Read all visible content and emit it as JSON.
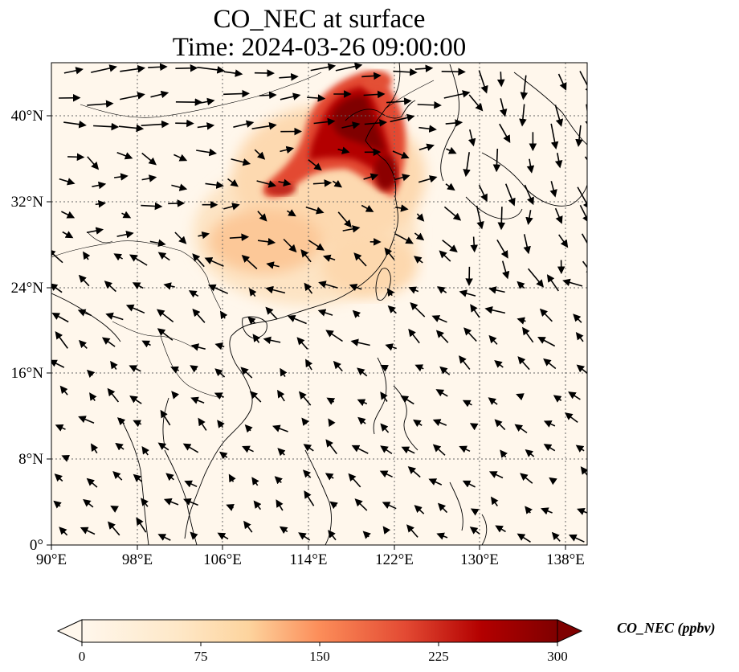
{
  "title": {
    "line1": "CO_NEC at surface",
    "line2": "Time: 2024-03-26 09:00:00"
  },
  "map": {
    "variable": "CO_NEC",
    "level": "surface",
    "time": "2024-03-26 09:00:00",
    "lon_range": [
      90,
      140
    ],
    "lat_range": [
      0,
      45
    ],
    "lon_ticks": [
      "90°E",
      "98°E",
      "106°E",
      "114°E",
      "122°E",
      "130°E",
      "138°E"
    ],
    "lat_ticks": [
      "0°",
      "8°N",
      "16°N",
      "24°N",
      "32°N",
      "40°N"
    ],
    "gridlines": "dotted",
    "overlays": [
      "coastlines",
      "country borders",
      "wind vectors"
    ],
    "plume_region": "Eastern China / North China Plain, highest over Bohai Sea and Shandong"
  },
  "colorbar": {
    "label": "CO_NEC (ppbv)",
    "ticks": [
      "0",
      "75",
      "150",
      "225",
      "300"
    ],
    "min": 0,
    "max": 300,
    "colormap": "OrRd",
    "extend": "both",
    "colors": [
      "#fff7ec",
      "#fdd49e",
      "#fc8d59",
      "#d7301f",
      "#7f0000"
    ]
  }
}
